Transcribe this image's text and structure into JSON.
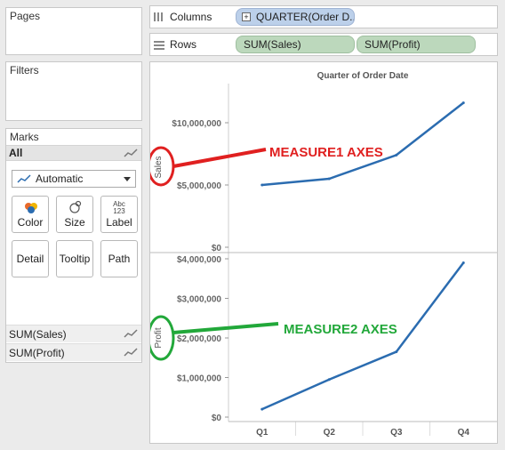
{
  "pages": {
    "title": "Pages"
  },
  "filters": {
    "title": "Filters"
  },
  "marks": {
    "title": "Marks",
    "all_label": "All",
    "mark_type": "Automatic",
    "buttons": {
      "color": "Color",
      "size": "Size",
      "label": "Label",
      "label_icon_top": "Abc",
      "label_icon_bottom": "123",
      "detail": "Detail",
      "tooltip": "Tooltip",
      "path": "Path"
    },
    "measures": [
      "SUM(Sales)",
      "SUM(Profit)"
    ]
  },
  "shelves": {
    "columns_label": "Columns",
    "columns_pill": "QUARTER(Order D..",
    "rows_label": "Rows",
    "rows_pills": [
      "SUM(Sales)",
      "SUM(Profit)"
    ]
  },
  "annotations": {
    "measure1": "MEASURE1 AXES",
    "measure2": "MEASURE2 AXES",
    "measure1_color": "#e02020",
    "measure2_color": "#22a83a"
  },
  "chart_data": {
    "type": "line",
    "title": "Quarter of Order Date",
    "categories": [
      "Q1",
      "Q2",
      "Q3",
      "Q4"
    ],
    "line_color": "#2b6cb0",
    "panes": [
      {
        "ylabel": "Sales",
        "ylim": [
          0,
          13500000
        ],
        "ticks": [
          0,
          5000000,
          10000000
        ],
        "tick_labels": [
          "$0",
          "$5,000,000",
          "$10,000,000"
        ],
        "values": [
          5000000,
          5500000,
          7400000,
          11600000
        ]
      },
      {
        "ylabel": "Profit",
        "ylim": [
          0,
          4000000
        ],
        "ticks": [
          0,
          1000000,
          2000000,
          3000000,
          4000000
        ],
        "tick_labels": [
          "$0",
          "$1,000,000",
          "$2,000,000",
          "$3,000,000",
          "$4,000,000"
        ],
        "values": [
          200000,
          950000,
          1650000,
          3900000
        ]
      }
    ]
  }
}
